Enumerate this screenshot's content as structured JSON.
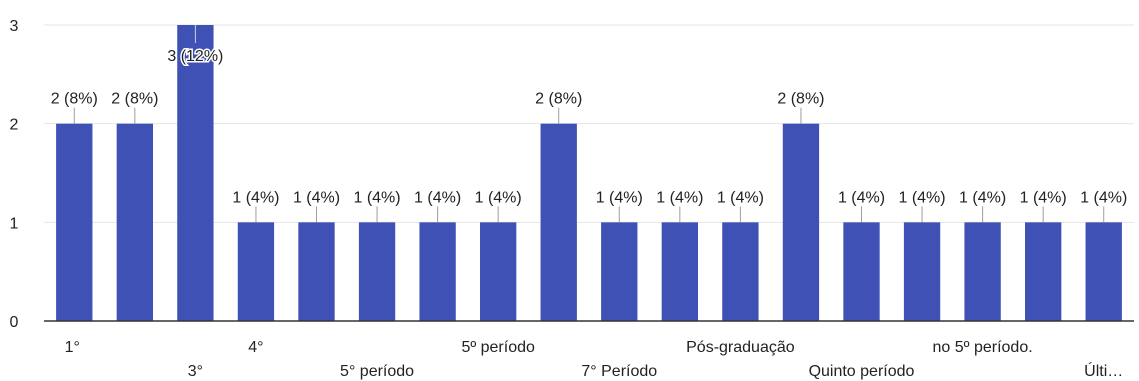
{
  "chart_data": {
    "type": "bar",
    "title": "",
    "xlabel": "",
    "ylabel": "",
    "ylim": [
      0,
      3
    ],
    "yticks": [
      0,
      1,
      2,
      3
    ],
    "grid": true,
    "legend": "none",
    "bar_color": "#3f51b5",
    "categories": [
      "1°",
      "",
      "3°",
      "4°",
      "",
      "5° período",
      "",
      "5º período",
      "",
      "7° Período",
      "",
      "Pós-graduação",
      "",
      "Quinto período",
      "",
      "no 5º período.",
      "",
      "Últi…"
    ],
    "values": [
      2,
      2,
      3,
      1,
      1,
      1,
      1,
      1,
      2,
      1,
      1,
      1,
      2,
      1,
      1,
      1,
      1,
      1
    ],
    "data_labels": [
      "2 (8%)",
      "2 (8%)",
      "3 (12%)",
      "1 (4%)",
      "1 (4%)",
      "1 (4%)",
      "1 (4%)",
      "1 (4%)",
      "2 (8%)",
      "1 (4%)",
      "1 (4%)",
      "1 (4%)",
      "2 (8%)",
      "1 (4%)",
      "1 (4%)",
      "1 (4%)",
      "1 (4%)",
      "1 (4%)"
    ]
  }
}
